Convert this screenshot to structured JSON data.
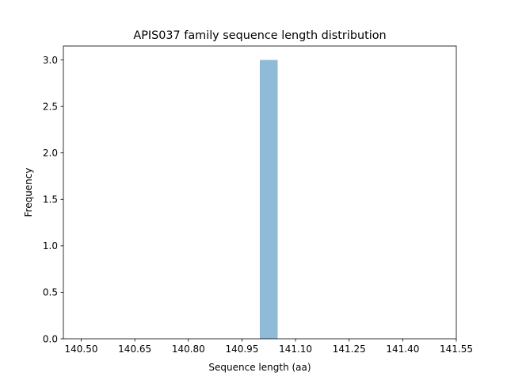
{
  "chart_data": {
    "type": "bar",
    "title": "APIS037 family sequence length distribution",
    "xlabel": "Sequence length (aa)",
    "ylabel": "Frequency",
    "xlim": [
      140.45,
      141.55
    ],
    "ylim": [
      0,
      3.15
    ],
    "xticks": [
      "140.50",
      "140.65",
      "140.80",
      "140.95",
      "141.10",
      "141.25",
      "141.40",
      "141.55"
    ],
    "yticks": [
      "0.0",
      "0.5",
      "1.0",
      "1.5",
      "2.0",
      "2.5",
      "3.0"
    ],
    "bins": [
      {
        "start": 141.0,
        "end": 141.05,
        "count": 3
      }
    ],
    "bar_color": "#1f77b4",
    "bar_alpha": 0.5,
    "grid": false
  }
}
